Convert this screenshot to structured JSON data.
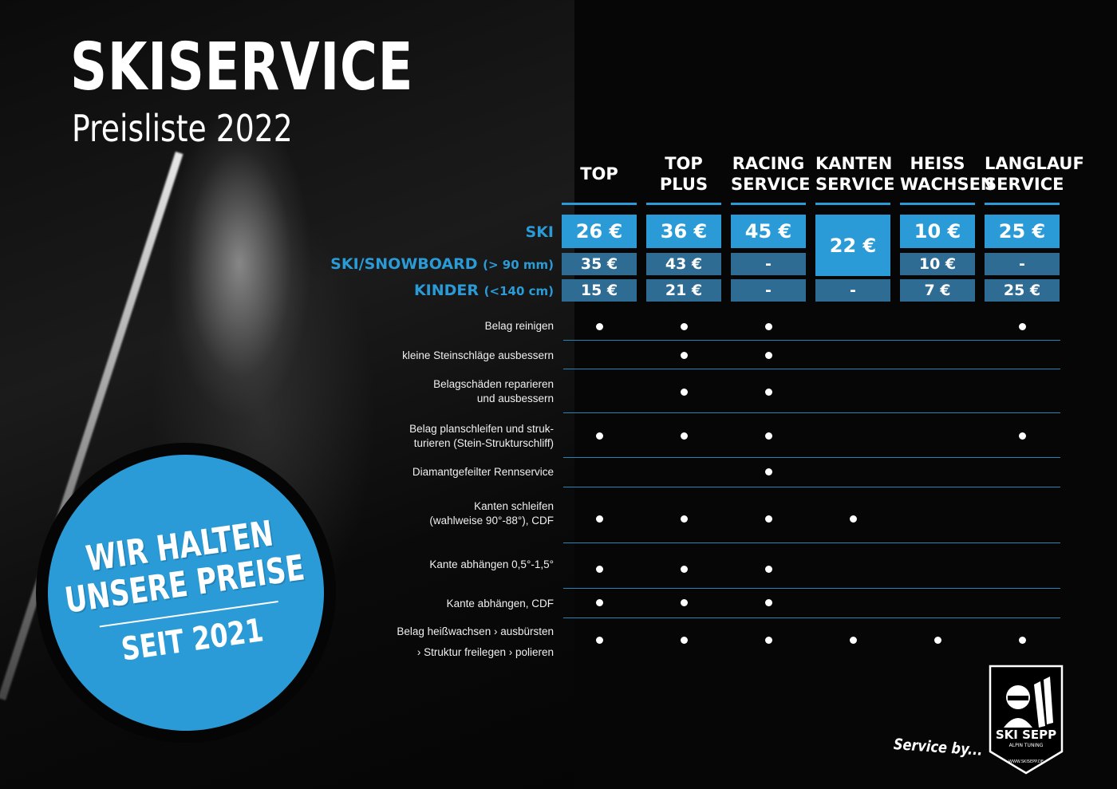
{
  "header": {
    "title": "SKISERVICE",
    "subtitle": "Preisliste 2022"
  },
  "columns": [
    {
      "line1": "TOP",
      "line2": ""
    },
    {
      "line1": "TOP",
      "line2": "PLUS"
    },
    {
      "line1": "RACING",
      "line2": "SERVICE"
    },
    {
      "line1": "KANTEN",
      "line2": "SERVICE"
    },
    {
      "line1": "HEISS",
      "line2": "WACHSEN"
    },
    {
      "line1": "LANGLAUF",
      "line2": "SERVICE"
    }
  ],
  "price_rows": [
    {
      "label": "SKI",
      "sublabel": "",
      "values": [
        "26 €",
        "36 €",
        "45 €",
        "22 €",
        "10 €",
        "25 €"
      ]
    },
    {
      "label": "SKI/SNOWBOARD",
      "sublabel": "(> 90 mm)",
      "values": [
        "35 €",
        "43 €",
        "-",
        "",
        "10 €",
        "-"
      ]
    },
    {
      "label": "KINDER",
      "sublabel": "(<140 cm)",
      "values": [
        "15 €",
        "21 €",
        "-",
        "-",
        "7 €",
        "25 €"
      ]
    }
  ],
  "features": [
    {
      "line1": "Belag reinigen",
      "line2": "",
      "checks": [
        true,
        true,
        true,
        false,
        false,
        true
      ]
    },
    {
      "line1": "kleine Steinschläge ausbessern",
      "line2": "",
      "checks": [
        false,
        true,
        true,
        false,
        false,
        false
      ]
    },
    {
      "line1": "Belagschäden reparieren",
      "line2": "und ausbessern",
      "checks": [
        false,
        true,
        true,
        false,
        false,
        false
      ]
    },
    {
      "line1": "Belag planschleifen und struk-",
      "line2": "turieren (Stein-Strukturschliff)",
      "checks": [
        true,
        true,
        true,
        false,
        false,
        true
      ]
    },
    {
      "line1": "Diamantgefeilter Rennservice",
      "line2": "",
      "checks": [
        false,
        false,
        true,
        false,
        false,
        false
      ]
    },
    {
      "line1": "Kanten schleifen",
      "line2": "(wahlweise 90°-88°), CDF",
      "checks": [
        true,
        true,
        true,
        true,
        false,
        false
      ]
    },
    {
      "line1": "Kante abhängen 0,5°-1,5°",
      "line2": "",
      "checks": [
        true,
        true,
        true,
        false,
        false,
        false
      ]
    },
    {
      "line1": "Kante abhängen, CDF",
      "line2": "",
      "checks": [
        true,
        true,
        true,
        false,
        false,
        false
      ]
    },
    {
      "line1": "Belag heißwachsen › ausbürsten",
      "line2": "› Struktur freilegen › polieren",
      "checks": [
        true,
        true,
        true,
        true,
        true,
        true
      ]
    }
  ],
  "badge": {
    "line1": "WIR HALTEN",
    "line2": "UNSERE PREISE",
    "line3": "SEIT 2021"
  },
  "footer": {
    "service_by": "Service by...",
    "logo_text": "SKI SEPP",
    "logo_sub": "ALPIN TUNING",
    "logo_url": "WWW.SKISEPP.DE"
  },
  "colors": {
    "accent": "#2a9bd6",
    "price_dark": "#2f6c93",
    "background": "#060606"
  }
}
